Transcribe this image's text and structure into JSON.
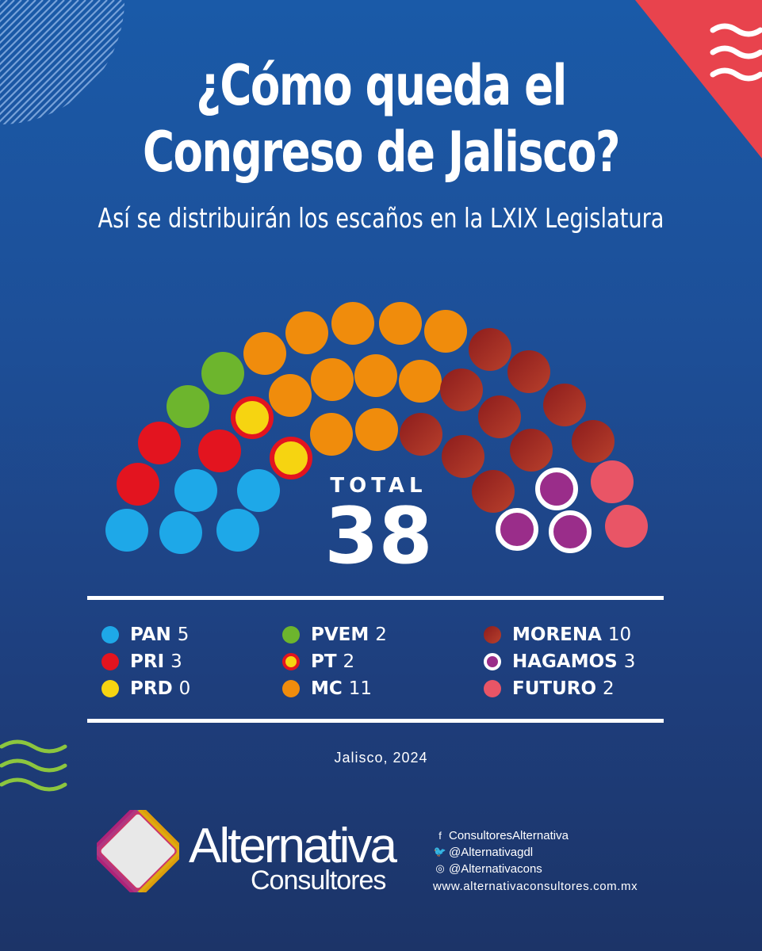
{
  "header": {
    "title_line1": "¿Cómo queda el",
    "title_line2": "Congreso de Jalisco?",
    "subtitle": "Así se distribuirán los escaños en la LXIX Legislatura"
  },
  "total": {
    "label": "TOTAL",
    "value": "38"
  },
  "chart_data": {
    "type": "parliament",
    "title": "¿Cómo queda el Congreso de Jalisco?",
    "subtitle": "Así se distribuirán los escaños en la LXIX Legislatura",
    "total": 38,
    "parties": [
      {
        "name": "PAN",
        "seats": 5,
        "color": "#1ea8e8",
        "style": "solid"
      },
      {
        "name": "PRI",
        "seats": 3,
        "color": "#e3141f",
        "style": "solid"
      },
      {
        "name": "PRD",
        "seats": 0,
        "color": "#f6d411",
        "style": "solid"
      },
      {
        "name": "PVEM",
        "seats": 2,
        "color": "#6db52d",
        "style": "solid"
      },
      {
        "name": "PT",
        "seats": 2,
        "color": "#f6d411",
        "ring": "#e3141f",
        "style": "ringed"
      },
      {
        "name": "MC",
        "seats": 11,
        "color": "#f08c0c",
        "style": "solid"
      },
      {
        "name": "MORENA",
        "seats": 10,
        "color": "#951f1f",
        "color2": "#b53a2a",
        "style": "gradient"
      },
      {
        "name": "HAGAMOS",
        "seats": 3,
        "color": "#9a2d8a",
        "ring": "#ffffff",
        "style": "ringed"
      },
      {
        "name": "FUTURO",
        "seats": 2,
        "color": "#e95566",
        "style": "solid"
      }
    ]
  },
  "legend": [
    {
      "name": "PAN",
      "count": "5"
    },
    {
      "name": "PRI",
      "count": "3"
    },
    {
      "name": "PRD",
      "count": "0"
    },
    {
      "name": "PVEM",
      "count": "2"
    },
    {
      "name": "PT",
      "count": "2"
    },
    {
      "name": "MC",
      "count": "11"
    },
    {
      "name": "MORENA",
      "count": "10"
    },
    {
      "name": "HAGAMOS",
      "count": "3"
    },
    {
      "name": "FUTURO",
      "count": "2"
    }
  ],
  "footer": {
    "place_date": "Jalisco, 2024",
    "brand_line1": "Alternativa",
    "brand_line2": "Consultores",
    "facebook": "ConsultoresAlternativa",
    "twitter": "@Alternativagdl",
    "instagram": "@Alternativacons",
    "website": "www.alternativaconsultores.com.mx"
  },
  "colors": {
    "background_top": "#1a5aa8",
    "background_bottom": "#1c3468",
    "corner_accent": "#e8434d",
    "wave_green": "#8cc63f"
  }
}
